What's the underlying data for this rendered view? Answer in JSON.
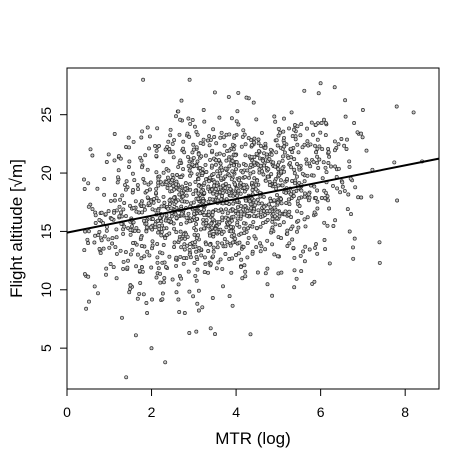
{
  "chart_data": {
    "type": "scatter",
    "title": "",
    "xlabel": "MTR (log)",
    "ylabel": "Flight altitude [√m]",
    "xlim": [
      0,
      8.8
    ],
    "ylim": [
      1.5,
      29
    ],
    "x_ticks": [
      "0",
      "2",
      "4",
      "6",
      "8"
    ],
    "x_tick_values": [
      0,
      2,
      4,
      6,
      8
    ],
    "y_ticks": [
      "5",
      "10",
      "15",
      "20",
      "25"
    ],
    "y_tick_values": [
      5,
      10,
      15,
      20,
      25
    ],
    "grid": false,
    "legend": "none",
    "fit_line": {
      "intercept": 14.9,
      "slope": 0.72
    },
    "n_points": 1500,
    "point_fill": "#c8c8c8",
    "point_stroke": "#2e2e2e",
    "points_sample": [
      [
        0.45,
        11.2
      ],
      [
        0.5,
        14.0
      ],
      [
        0.55,
        17.3
      ],
      [
        0.6,
        21.5
      ],
      [
        0.8,
        15.9
      ],
      [
        1.0,
        13.6
      ],
      [
        1.1,
        16.0
      ],
      [
        1.2,
        19.2
      ],
      [
        1.3,
        7.6
      ],
      [
        1.4,
        2.5
      ],
      [
        1.5,
        10.4
      ],
      [
        1.8,
        28.0
      ],
      [
        2.0,
        17.7
      ],
      [
        2.2,
        13.2
      ],
      [
        2.5,
        22.5
      ],
      [
        2.9,
        28.0
      ],
      [
        3.0,
        16.2
      ],
      [
        3.2,
        8.5
      ],
      [
        3.4,
        6.7
      ],
      [
        3.5,
        6.2
      ],
      [
        4.0,
        18.5
      ],
      [
        4.3,
        26.4
      ],
      [
        4.7,
        15.8
      ],
      [
        5.0,
        11.4
      ],
      [
        5.4,
        24.0
      ],
      [
        5.8,
        10.5
      ],
      [
        6.0,
        27.7
      ],
      [
        6.2,
        21.4
      ],
      [
        6.5,
        19.3
      ],
      [
        7.0,
        25.4
      ],
      [
        7.2,
        18.0
      ],
      [
        7.4,
        12.3
      ],
      [
        7.8,
        25.7
      ],
      [
        8.2,
        25.2
      ],
      [
        8.4,
        21.0
      ]
    ]
  }
}
